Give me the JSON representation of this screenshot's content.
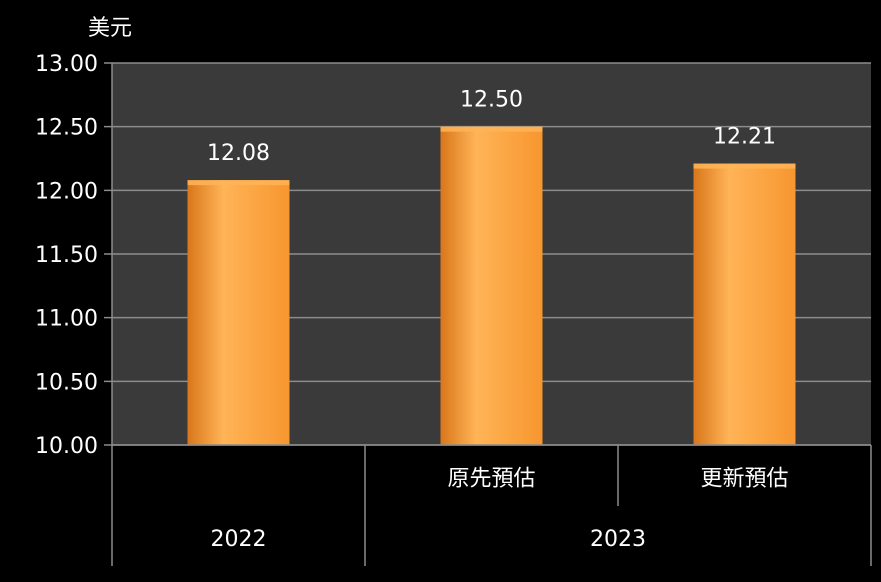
{
  "chart_data": {
    "type": "bar",
    "unit_label": "美元",
    "categories": [
      "",
      "原先預估",
      "更新預估"
    ],
    "groups": [
      {
        "label": "2022",
        "span": 1
      },
      {
        "label": "2023",
        "span": 2
      }
    ],
    "values": [
      12.08,
      12.5,
      12.21
    ],
    "value_labels": [
      "12.08",
      "12.50",
      "12.21"
    ],
    "ylim": [
      10.0,
      13.0
    ],
    "yticks": [
      "10.00",
      "10.50",
      "11.00",
      "11.50",
      "12.00",
      "12.50",
      "13.00"
    ],
    "grid": true,
    "colors": {
      "bar": "#f7962f",
      "bar_light": "#ffb457",
      "bar_dark": "#d9761a",
      "plot_bg": "#3a3a3a",
      "grid": "#8c8c8c",
      "text": "#ffffff",
      "page_bg": "#000000"
    }
  }
}
